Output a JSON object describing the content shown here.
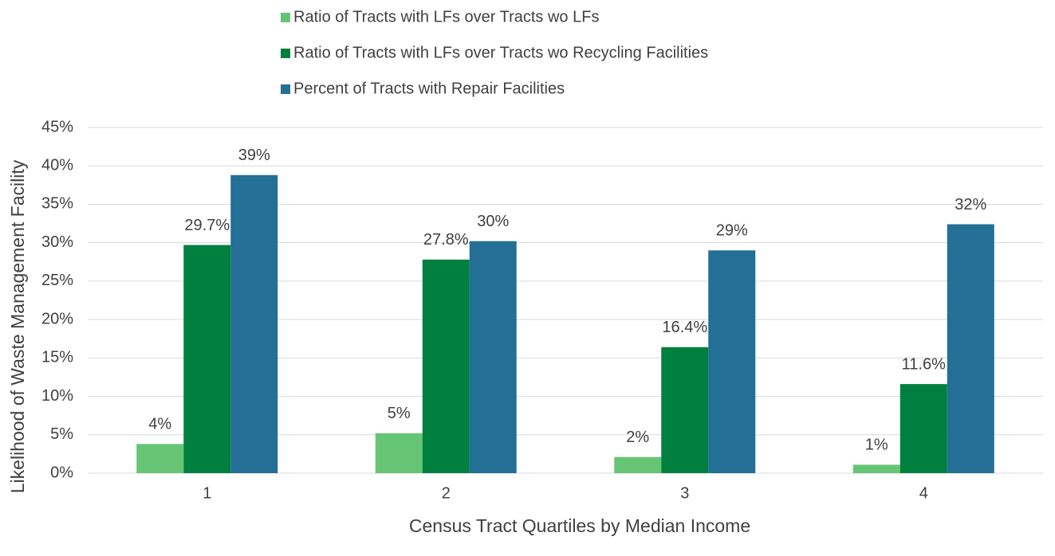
{
  "chart_data": {
    "type": "bar",
    "categories": [
      "1",
      "2",
      "3",
      "4"
    ],
    "series": [
      {
        "name": "Ratio of Tracts with LFs over Tracts wo LFs",
        "color": "#66c575",
        "values": [
          3.8,
          5.2,
          2.1,
          1.1
        ],
        "value_labels": [
          "4%",
          "5%",
          "2%",
          "1%"
        ]
      },
      {
        "name": "Ratio of Tracts with LFs over Tracts wo Recycling Facilities",
        "color": "#00803e",
        "values": [
          29.7,
          27.8,
          16.4,
          11.6
        ],
        "value_labels": [
          "29.7%",
          "27.8%",
          "16.4%",
          "11.6%"
        ]
      },
      {
        "name": "Percent of Tracts with Repair Facilities",
        "color": "#236f96",
        "values": [
          38.8,
          30.2,
          29.0,
          32.4
        ],
        "value_labels": [
          "39%",
          "30%",
          "29%",
          "32%"
        ]
      }
    ],
    "x_label": "Census Tract Quartiles by Median Income",
    "y_label": "Likelihood of Waste Management Facility",
    "ylim": [
      0,
      45
    ],
    "yticks": [
      {
        "value": 0,
        "label": "0%"
      },
      {
        "value": 5,
        "label": "5%"
      },
      {
        "value": 10,
        "label": "10%"
      },
      {
        "value": 15,
        "label": "15%"
      },
      {
        "value": 20,
        "label": "20%"
      },
      {
        "value": 25,
        "label": "25%"
      },
      {
        "value": 30,
        "label": "30%"
      },
      {
        "value": 35,
        "label": "35%"
      },
      {
        "value": 40,
        "label": "40%"
      },
      {
        "value": 45,
        "label": "45%"
      }
    ],
    "grid": true,
    "legend": "top"
  }
}
